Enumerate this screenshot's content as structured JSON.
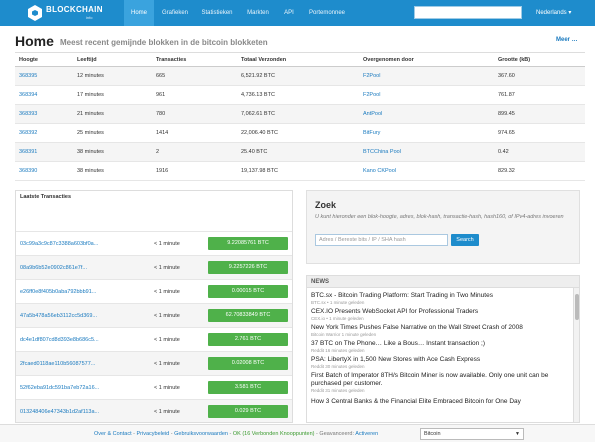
{
  "brand": {
    "name": "BLOCKCHAIN",
    "sub": "info"
  },
  "nav": [
    {
      "label": "Home",
      "active": true
    },
    {
      "label": "Grafieken"
    },
    {
      "label": "Statistieken"
    },
    {
      "label": "Markten"
    },
    {
      "label": "API"
    },
    {
      "label": "Portemonnee"
    }
  ],
  "language": "Nederlands ▾",
  "header": {
    "title": "Home",
    "subtitle": "Meest recent gemijnde blokken in de bitcoin blokketen",
    "more": "Meer …"
  },
  "blocks": {
    "columns": [
      "Hoogte",
      "Leeftijd",
      "Transacties",
      "Totaal Verzonden",
      "Overgenomen door",
      "Grootte (kB)"
    ],
    "rows": [
      [
        "368395",
        "12 minutes",
        "665",
        "6,521.92 BTC",
        "F2Pool",
        "367.60"
      ],
      [
        "368394",
        "17 minutes",
        "961",
        "4,736.13 BTC",
        "F2Pool",
        "761.87"
      ],
      [
        "368393",
        "21 minutes",
        "780",
        "7,062.61 BTC",
        "AntPool",
        "899.45"
      ],
      [
        "368392",
        "25 minutes",
        "1414",
        "22,006.40 BTC",
        "BitFury",
        "974.65"
      ],
      [
        "368391",
        "38 minutes",
        "2",
        "25.40 BTC",
        "BTCChina Pool",
        "0.42"
      ],
      [
        "368390",
        "38 minutes",
        "1916",
        "19,137.98 BTC",
        "Kano CKPool",
        "829.32"
      ]
    ]
  },
  "transactions": {
    "title": "Laatste Transacties",
    "rows": [
      {
        "hash": "03c99a3c9c87c3388a603bf0a...",
        "time": "< 1 minute",
        "amount": "9.22085761 BTC"
      },
      {
        "hash": "08a9b6b52e0902c861e7f...",
        "time": "< 1 minute",
        "amount": "9.2257226 BTC"
      },
      {
        "hash": "e26ff0e8f405b0aba792bbb91...",
        "time": "< 1 minute",
        "amount": "0.00015 BTC"
      },
      {
        "hash": "47a5b478a56eb3112cc5d369...",
        "time": "< 1 minute",
        "amount": "62.70833849 BTC"
      },
      {
        "hash": "dc4e1df807cd8d393e8b686c5...",
        "time": "< 1 minute",
        "amount": "2.761 BTC"
      },
      {
        "hash": "2fcaed0118ae110b56087577...",
        "time": "< 1 minute",
        "amount": "0.02008 BTC"
      },
      {
        "hash": "52f62eba91dc591ba7eb72a16...",
        "time": "< 1 minute",
        "amount": "3.581 BTC"
      },
      {
        "hash": "013248406e47343b1d2af113a...",
        "time": "< 1 minute",
        "amount": "0.029 BTC"
      }
    ]
  },
  "search": {
    "title": "Zoek",
    "description": "U kunt hieronder een blok-hoogte, adres, blok-hash, transactie-hash, hash160, of IPv4-adres invoeren",
    "placeholder": "Adres / Bereste bits / IP / SHA hash",
    "button": "Search"
  },
  "news": {
    "header": "NEWS",
    "items": [
      {
        "title": "BTC.sx - Bitcoin Trading Platform: Start Trading in Two Minutes",
        "meta": "BTC.sx • 1 minute geleden"
      },
      {
        "title": "CEX.IO Presents WebSocket API for Professional Traders",
        "meta": "CEX.io • 1 minute geleden"
      },
      {
        "title": "New York Times Pushes False Narrative on the Wall Street Crash of 2008",
        "meta": "Bitcoin Warrior 1 minute geleden"
      },
      {
        "title": "37 BTC on The Phone… Like a Bous… Instant transaction ;)",
        "meta": "Reddit 16 minutes geleden"
      },
      {
        "title": "PSA: LibertyX in 1,500 New Stores with Ace Cash Express",
        "meta": "Reddit 30 minutes geleden"
      },
      {
        "title": "First Batch of Imperator 8TH/s Bitcoin Miner is now available. Only one unit can be purchased per customer.",
        "meta": "Reddit 31 minutes geleden"
      },
      {
        "title": "How 3 Central Banks & the Financial Elite Embraced Bitcoin for One Day",
        "meta": ""
      }
    ]
  },
  "footer": {
    "overcontact": "Over & Contact",
    "privacy": "Privacybeleid",
    "terms": "Gebruiksvoorwaarden",
    "status": "OK (16 Verbonden Knooppunten)",
    "advanced_label": "Geavanceerd:",
    "advanced_value": "Activeren",
    "currency": "Bitcoin"
  }
}
